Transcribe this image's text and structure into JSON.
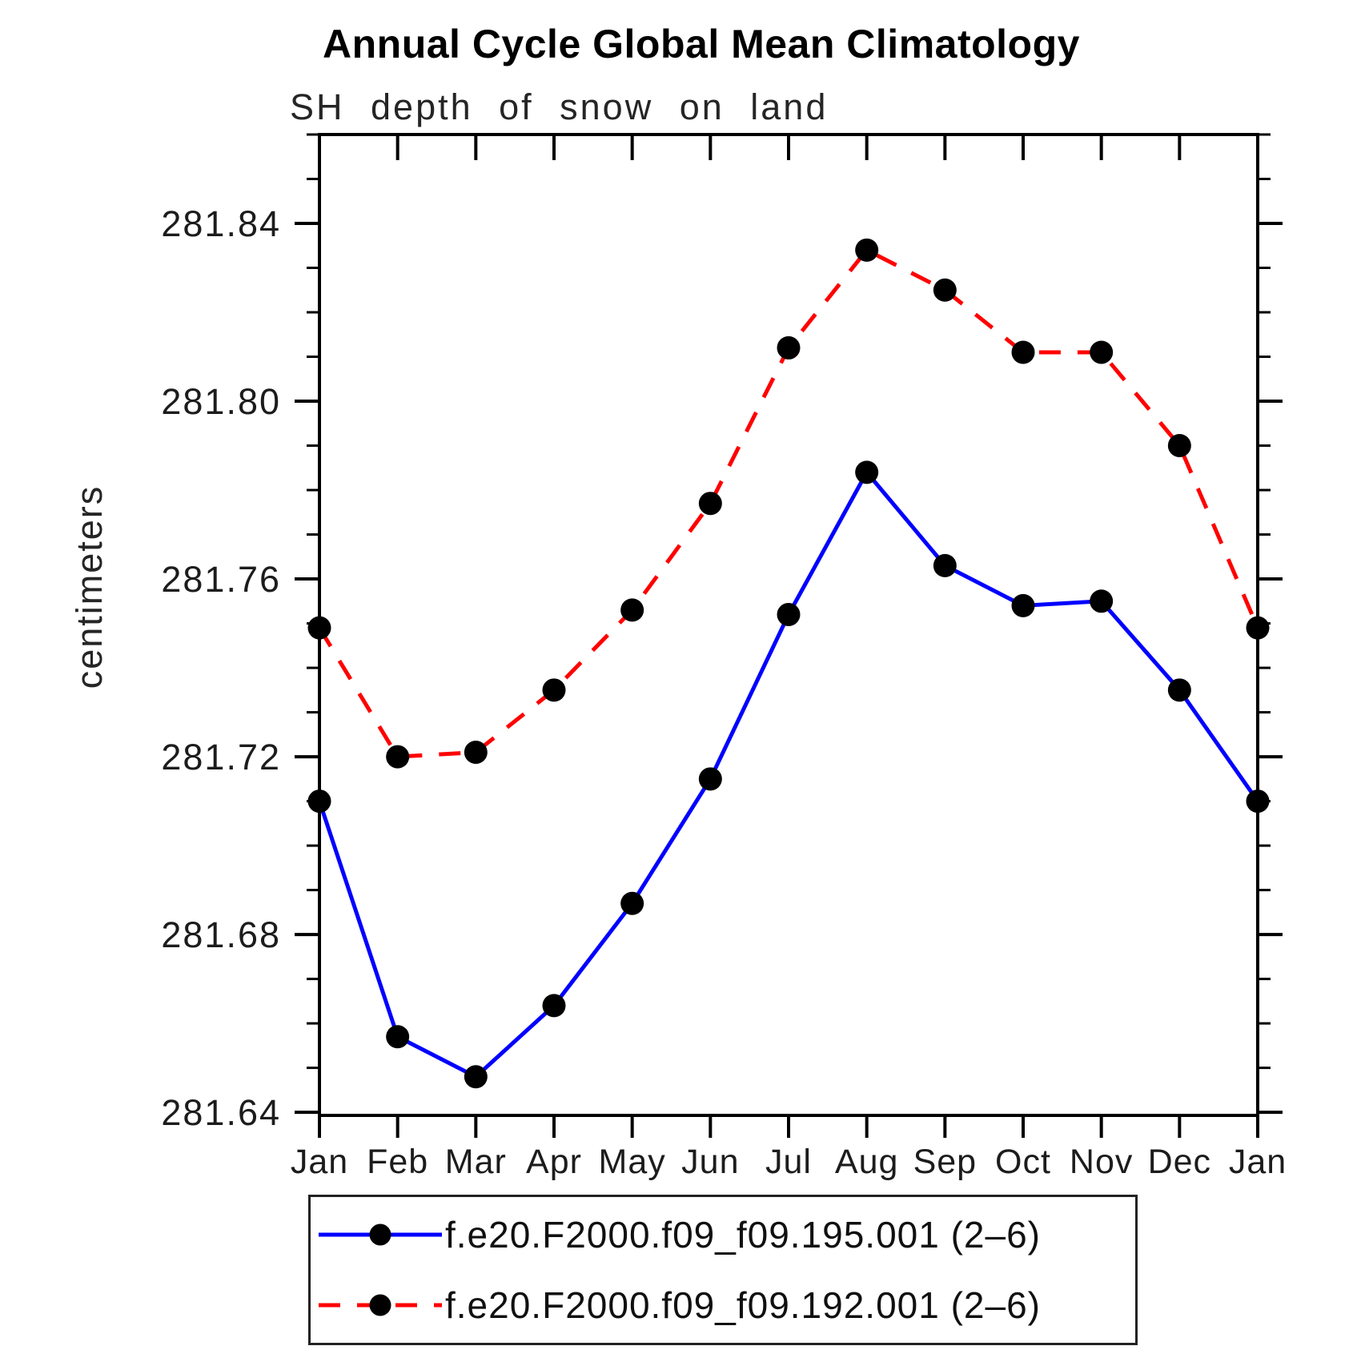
{
  "chart_data": {
    "type": "line",
    "title": "Annual Cycle Global Mean Climatology",
    "subtitle": "SH depth of snow on land",
    "ylabel": "centimeters",
    "categories": [
      "Jan",
      "Feb",
      "Mar",
      "Apr",
      "May",
      "Jun",
      "Jul",
      "Aug",
      "Sep",
      "Oct",
      "Nov",
      "Dec",
      "Jan"
    ],
    "series": [
      {
        "name": "f.e20.F2000.f09_f09.195.001 (2–6)",
        "color": "#0000ff",
        "line": "solid",
        "marker": "filled-circle",
        "marker_color": "#000000",
        "values": [
          281.71,
          281.657,
          281.648,
          281.664,
          281.687,
          281.715,
          281.752,
          281.784,
          281.763,
          281.754,
          281.755,
          281.735,
          281.71
        ]
      },
      {
        "name": "f.e20.F2000.f09_f09.192.001 (2–6)",
        "color": "#ff0000",
        "line": "dashed",
        "marker": "filled-circle",
        "marker_color": "#000000",
        "values": [
          281.749,
          281.72,
          281.721,
          281.735,
          281.753,
          281.777,
          281.812,
          281.834,
          281.825,
          281.811,
          281.811,
          281.79,
          281.749
        ]
      }
    ],
    "ylim": [
      281.6393,
      281.86
    ],
    "yticks_major": [
      281.64,
      281.68,
      281.72,
      281.76,
      281.8,
      281.84
    ],
    "ytick_minor_step": 0.01,
    "grid": false,
    "legend_position": "bottom",
    "axis_color": "#000000"
  }
}
